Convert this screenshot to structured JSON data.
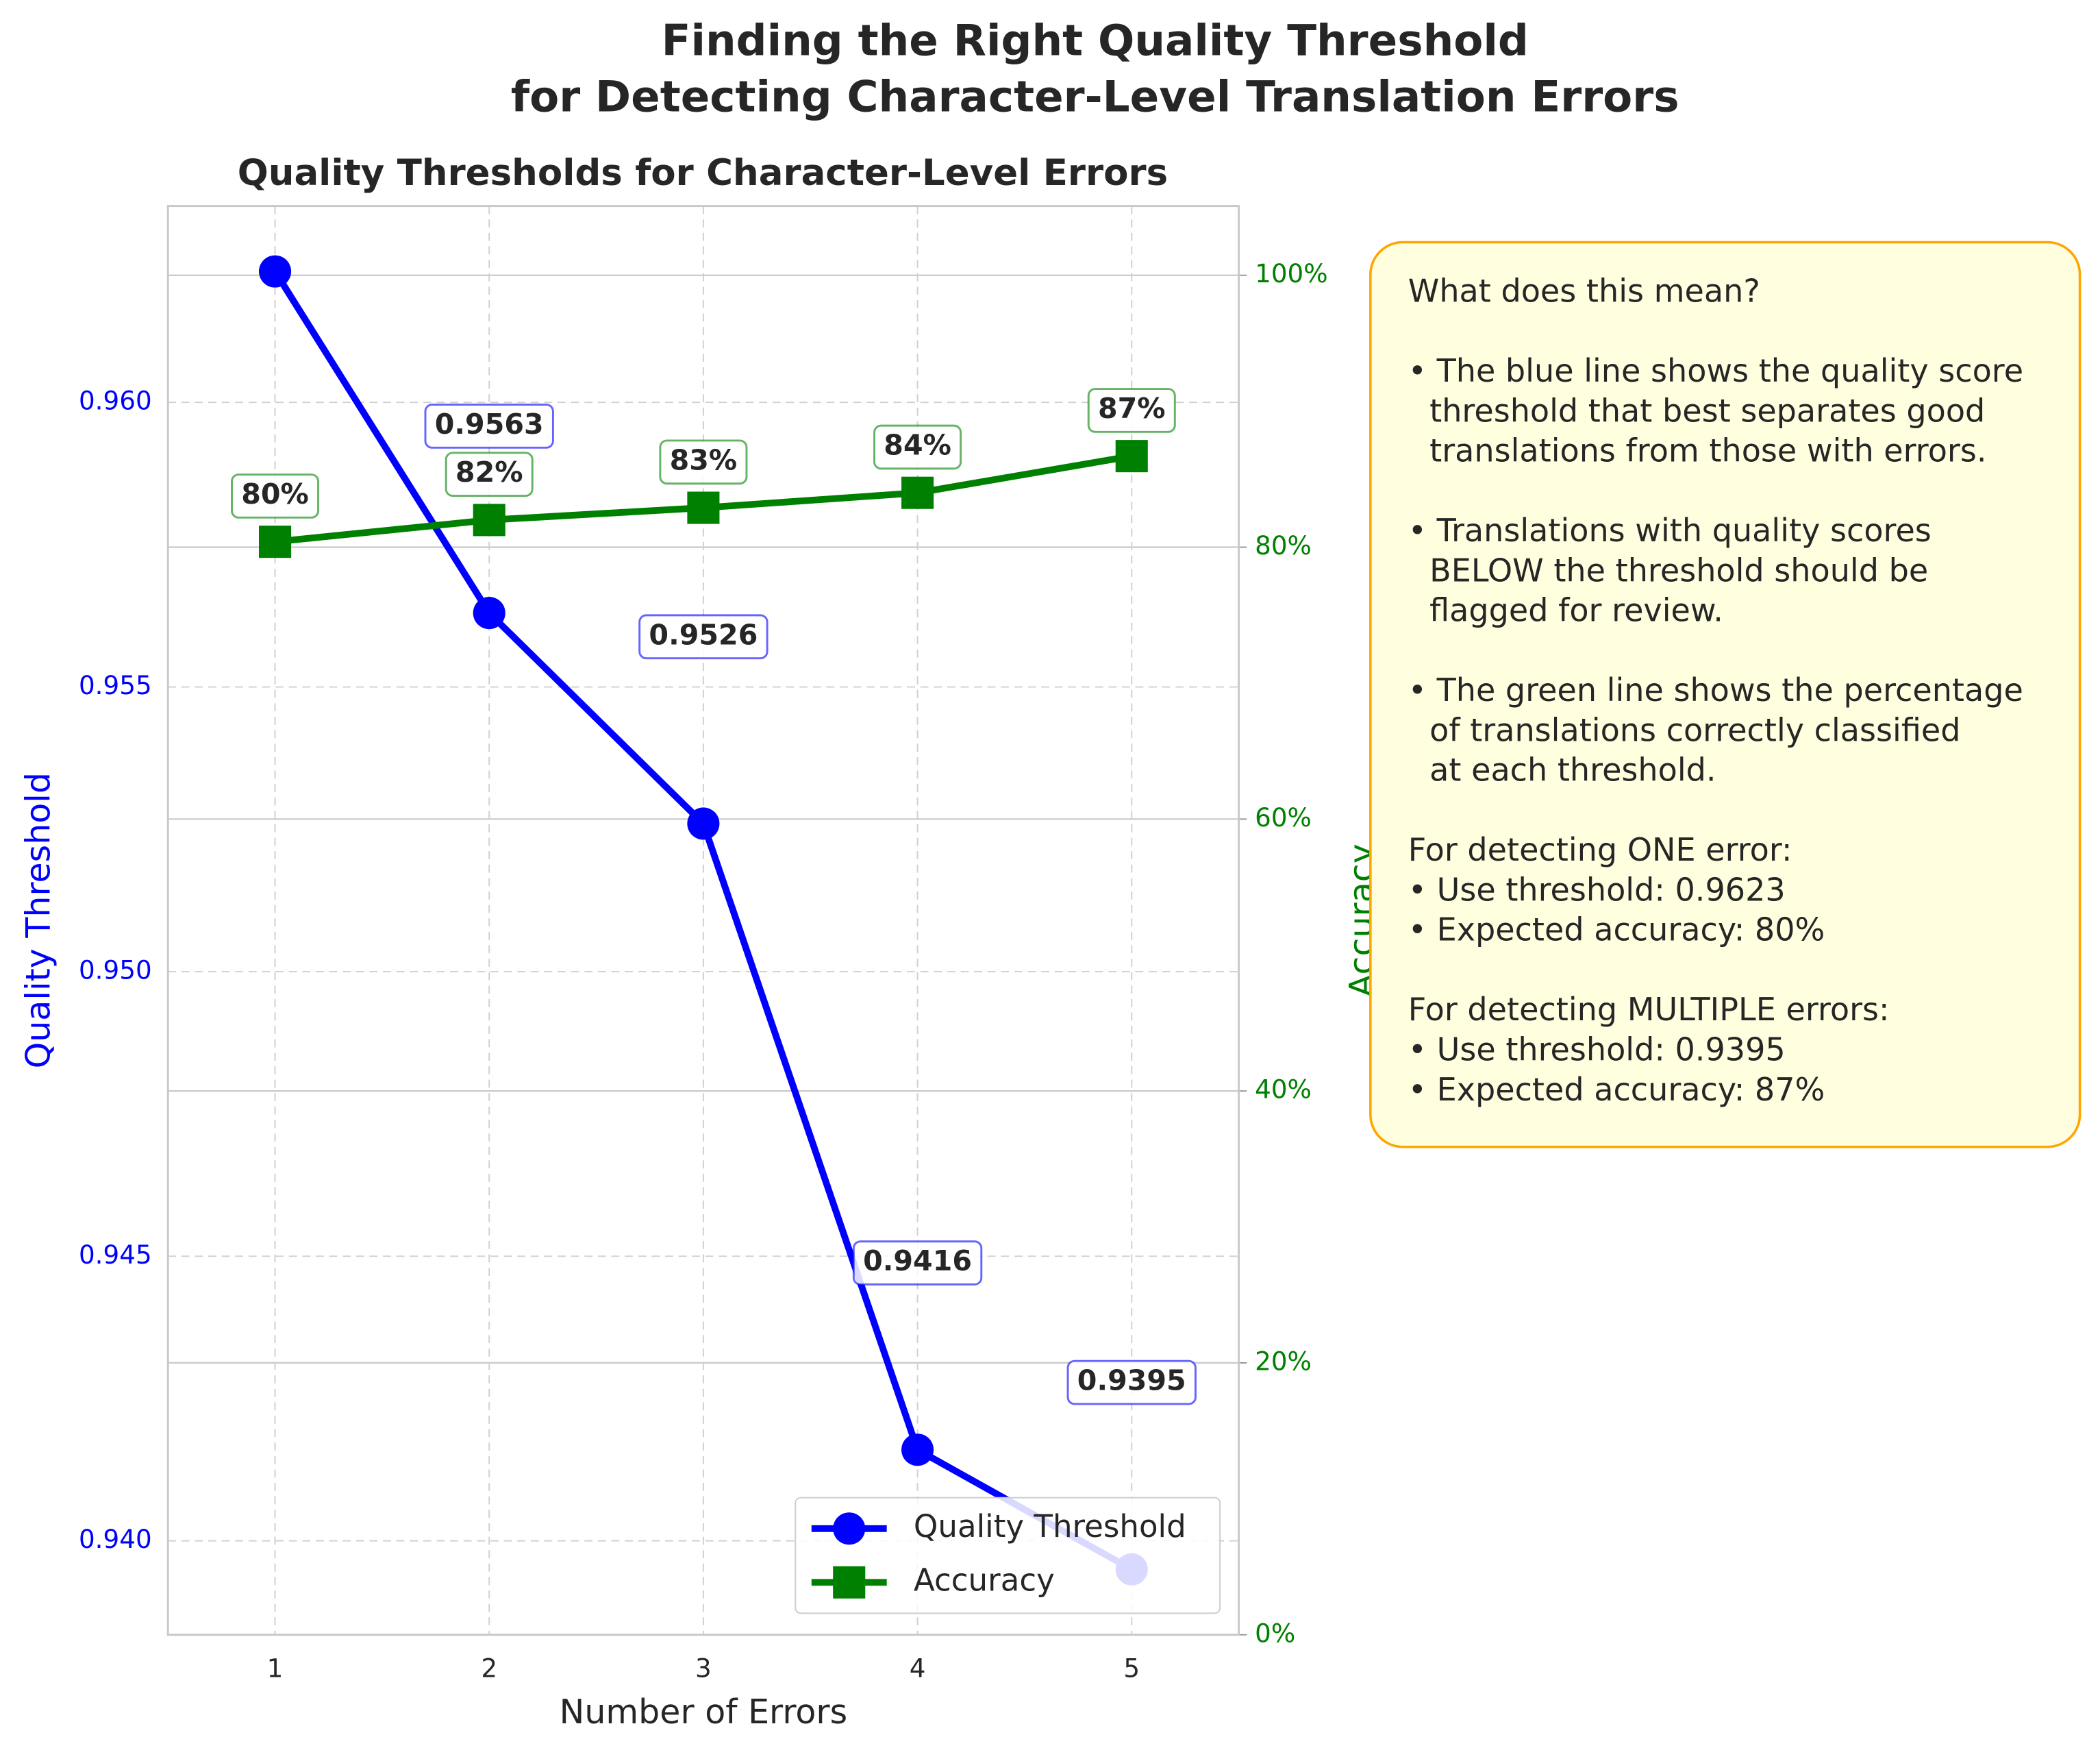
{
  "chart_data": {
    "type": "line",
    "title": [
      "Finding the Right Quality Threshold",
      "for Detecting Character-Level Translation Errors"
    ],
    "subtitle": "Quality Thresholds for Character-Level Errors",
    "x_label": "Number of Errors",
    "y_label": "Quality Threshold",
    "y2_label": "Accuracy",
    "x": [
      1,
      2,
      3,
      4,
      5
    ],
    "xlim": [
      0.5,
      5.5
    ],
    "xticks": [
      1,
      2,
      3,
      4,
      5
    ],
    "ylim": [
      0.93835,
      0.96345
    ],
    "yticks": [
      {
        "value": 0.94,
        "label": "0.940"
      },
      0.945,
      {
        "value": 0.95,
        "label": "0.950"
      },
      0.955,
      {
        "value": 0.96,
        "label": "0.960"
      }
    ],
    "y2lim": [
      0,
      105.1
    ],
    "y2ticks": [
      {
        "value": 0,
        "label": "0%"
      },
      {
        "value": 20,
        "label": "20%"
      },
      {
        "value": 40,
        "label": "40%"
      },
      {
        "value": 60,
        "label": "60%"
      },
      {
        "value": 80,
        "label": "80%"
      },
      {
        "value": 100,
        "label": "100%"
      }
    ],
    "grid": true,
    "legend": "lower right",
    "series": [
      {
        "name": "Quality Threshold",
        "color": "#0000ff",
        "marker": "circle",
        "values": [
          0.9623,
          0.9563,
          0.9526,
          0.9416,
          0.9395
        ]
      },
      {
        "name": "Accuracy",
        "color": "#008000",
        "marker": "square",
        "axis": "y2",
        "values": [
          80.4,
          82,
          82.9,
          84,
          86.7
        ],
        "value_labels": [
          "80%",
          "82%",
          "83%",
          "84%",
          "87%"
        ]
      }
    ],
    "info_box": [
      [
        "What does this mean?"
      ],
      [
        "• The blue line shows the quality score",
        "threshold that best separates good",
        "translations from those with errors."
      ],
      [
        "• Translations with quality scores",
        "BELOW the threshold should be",
        "flagged for review."
      ],
      [
        "• The green line shows the percentage",
        "of translations correctly classified",
        "at each threshold."
      ],
      [
        "For detecting ONE error:",
        "• Use threshold: 0.9623",
        "• Expected accuracy: 80%"
      ],
      [
        "For detecting MULTIPLE errors:",
        "• Use threshold: 0.9395",
        "• Expected accuracy: 87%"
      ]
    ]
  }
}
